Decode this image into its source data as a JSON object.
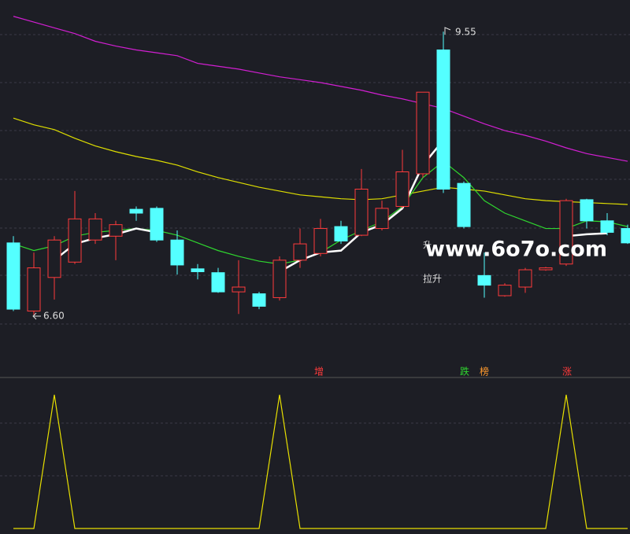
{
  "chart_data": [
    {
      "type": "candlestick",
      "ylim": [
        6.03,
        9.88
      ],
      "up_color": "#ff3b3b",
      "down_color": "#54ffff",
      "open": [
        7.35,
        6.64,
        6.99,
        7.15,
        7.38,
        7.42,
        7.7,
        7.71,
        7.38,
        7.08,
        7.04,
        6.84,
        6.82,
        6.78,
        7.17,
        7.24,
        7.52,
        7.43,
        7.5,
        7.73,
        8.07,
        9.36,
        7.97,
        7.01,
        6.8,
        6.89,
        7.07,
        7.13,
        7.8,
        7.58,
        7.5
      ],
      "high": [
        7.42,
        7.25,
        7.42,
        7.89,
        7.66,
        7.58,
        7.73,
        7.73,
        7.48,
        7.13,
        7.09,
        7.17,
        6.84,
        7.21,
        7.5,
        7.6,
        7.58,
        8.12,
        7.79,
        8.32,
        8.92,
        9.55,
        7.99,
        7.25,
        6.93,
        7.09,
        7.1,
        7.81,
        7.81,
        7.66,
        7.54
      ],
      "low": [
        6.64,
        6.6,
        6.76,
        7.13,
        7.34,
        7.17,
        7.58,
        7.36,
        7.02,
        6.97,
        6.83,
        6.61,
        6.66,
        6.75,
        7.09,
        7.21,
        7.34,
        7.42,
        7.48,
        7.71,
        8.03,
        7.87,
        7.5,
        6.78,
        6.79,
        6.83,
        7.06,
        7.11,
        7.5,
        7.43,
        7.34
      ],
      "close": [
        6.66,
        7.09,
        7.38,
        7.6,
        7.6,
        7.54,
        7.66,
        7.38,
        7.12,
        7.05,
        6.84,
        6.89,
        6.69,
        7.17,
        7.34,
        7.5,
        7.37,
        7.91,
        7.71,
        8.09,
        8.92,
        7.91,
        7.52,
        6.91,
        6.91,
        7.07,
        7.09,
        7.79,
        7.58,
        7.46,
        7.35
      ],
      "series": [
        {
          "color": "#d21fd2",
          "values": [
            9.71,
            9.65,
            9.59,
            9.53,
            9.45,
            9.4,
            9.36,
            9.33,
            9.3,
            9.22,
            9.19,
            9.16,
            9.12,
            9.08,
            9.05,
            9.02,
            8.98,
            8.94,
            8.89,
            8.85,
            8.8,
            8.75,
            8.67,
            8.59,
            8.52,
            8.47,
            8.41,
            8.34,
            8.28,
            8.24,
            8.2
          ]
        },
        {
          "color": "#dede00",
          "values": [
            8.65,
            8.58,
            8.53,
            8.44,
            8.36,
            8.3,
            8.25,
            8.21,
            8.16,
            8.09,
            8.03,
            7.98,
            7.93,
            7.89,
            7.85,
            7.83,
            7.81,
            7.8,
            7.81,
            7.85,
            7.89,
            7.93,
            7.91,
            7.89,
            7.85,
            7.81,
            7.79,
            7.78,
            7.77,
            7.76,
            7.75
          ]
        },
        {
          "color": "#2fd62f",
          "values": [
            7.34,
            7.27,
            7.32,
            7.42,
            7.46,
            7.48,
            7.5,
            7.48,
            7.43,
            7.35,
            7.27,
            7.21,
            7.16,
            7.13,
            7.17,
            7.25,
            7.38,
            7.48,
            7.57,
            7.73,
            8.03,
            8.2,
            8.03,
            7.79,
            7.66,
            7.58,
            7.5,
            7.5,
            7.58,
            7.57,
            7.52
          ]
        },
        {
          "color": "#ffffff",
          "values": [
            null,
            null,
            7.17,
            7.34,
            7.4,
            7.44,
            7.5,
            7.46,
            null,
            null,
            null,
            null,
            null,
            7.05,
            7.17,
            7.25,
            7.27,
            7.46,
            7.54,
            7.71,
            8.16,
            8.42,
            null,
            null,
            null,
            null,
            null,
            7.42,
            7.44,
            7.45,
            null
          ]
        }
      ],
      "annotations": [
        "9.55",
        "6.60",
        "升",
        "拉升",
        "www.6o7o.com"
      ],
      "signals": [
        {
          "text": "增",
          "color": "#ff3b3b"
        },
        {
          "text": "跌",
          "color": "#2fd62f"
        },
        {
          "text": "榜",
          "color": "#ff9a2e"
        },
        {
          "text": "涨",
          "color": "#ff3b3b"
        }
      ]
    },
    {
      "type": "line",
      "ylim": [
        0,
        1
      ],
      "color": "#e8e000",
      "values": [
        0,
        0,
        1,
        0,
        0,
        0,
        0,
        0,
        0,
        0,
        0,
        0,
        0,
        1,
        0,
        0,
        0,
        0,
        0,
        0,
        0,
        0,
        0,
        0,
        0,
        0,
        0,
        1,
        0,
        0,
        0
      ]
    }
  ]
}
